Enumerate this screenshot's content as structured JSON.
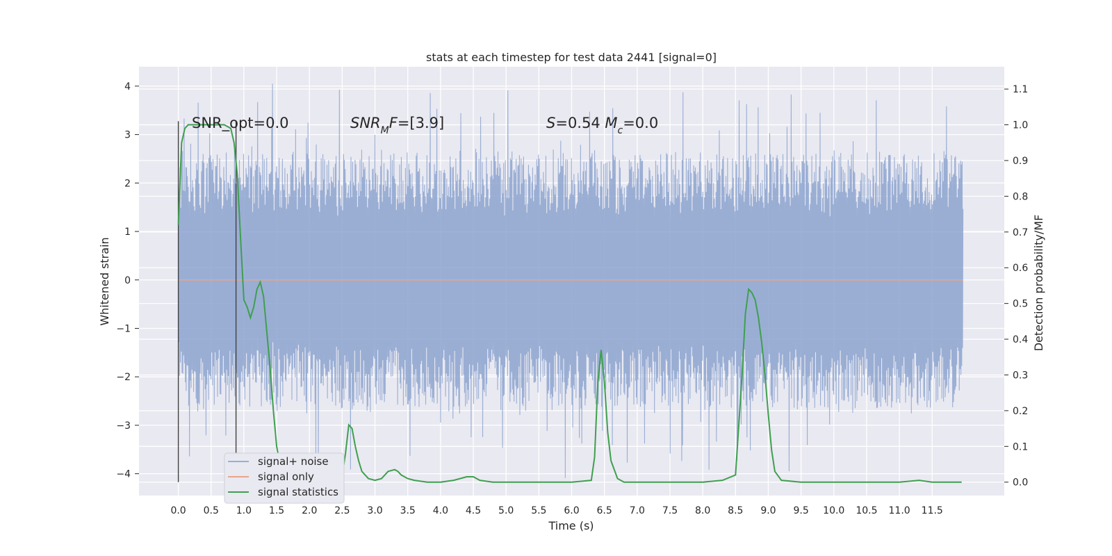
{
  "chart_data": {
    "type": "line",
    "title": "stats at each timestep for test data 2441 [signal=0]",
    "xlabel": "Time (s)",
    "ylabel": "Whitened strain",
    "y2label": "Detection probability/MF",
    "xlim": [
      -0.6,
      12.6
    ],
    "ylim": [
      -4.45,
      4.4
    ],
    "y2lim": [
      -0.0375,
      1.1625
    ],
    "x_ticks": [
      "0.0",
      "0.5",
      "1.0",
      "1.5",
      "2.0",
      "2.5",
      "3.0",
      "3.5",
      "4.0",
      "4.5",
      "5.0",
      "5.5",
      "6.0",
      "6.5",
      "7.0",
      "7.5",
      "8.0",
      "8.5",
      "9.0",
      "9.5",
      "10.0",
      "10.5",
      "11.0",
      "11.5"
    ],
    "y_ticks": [
      "4",
      "3",
      "2",
      "1",
      "0",
      "−1",
      "−2",
      "−3",
      "−4"
    ],
    "y2_ticks": [
      "1.1",
      "1.0",
      "0.9",
      "0.8",
      "0.7",
      "0.6",
      "0.5",
      "0.4",
      "0.3",
      "0.2",
      "0.1",
      "0.0"
    ],
    "grid": true,
    "legend_position": "lower-left",
    "annotations": [
      {
        "label": "SNR_opt=0.0"
      },
      {
        "parts": [
          {
            "t": "SNR",
            "italic": true
          },
          {
            "t": "M",
            "italic": true,
            "sub": true
          },
          {
            "t": "F",
            "italic": true
          },
          {
            "t": "=[3.9]"
          }
        ]
      },
      {
        "parts": [
          {
            "t": "S",
            "italic": true
          },
          {
            "t": "=0.54   "
          },
          {
            "t": "M",
            "italic": true
          },
          {
            "t": "c",
            "italic": true,
            "sub": true
          },
          {
            "t": "=0.0"
          }
        ]
      }
    ],
    "vertical_lines_x": [
      0.0,
      0.88
    ],
    "series": [
      {
        "name": "signal+ noise",
        "color": "#8ca3cf",
        "axis": "left",
        "x_range": [
          0.0,
          11.97
        ],
        "envelope_upper_typical": 2.2,
        "envelope_lower_typical": -2.2,
        "peak_max": 4.05,
        "peak_min": -4.05
      },
      {
        "name": "signal only",
        "color": "#e8a58a",
        "axis": "left",
        "x": [
          0.0,
          11.97
        ],
        "y": [
          0.0,
          0.0
        ]
      },
      {
        "name": "signal statistics",
        "color": "#3f9f4f",
        "axis": "right",
        "x": [
          0.0,
          0.05,
          0.1,
          0.15,
          0.2,
          0.3,
          0.5,
          0.7,
          0.8,
          0.85,
          0.9,
          0.95,
          1.0,
          1.05,
          1.1,
          1.15,
          1.2,
          1.25,
          1.3,
          1.35,
          1.4,
          1.45,
          1.5,
          1.55,
          1.6,
          1.7,
          1.8,
          2.0,
          2.2,
          2.4,
          2.5,
          2.55,
          2.6,
          2.65,
          2.7,
          2.75,
          2.8,
          2.9,
          3.0,
          3.1,
          3.2,
          3.3,
          3.35,
          3.4,
          3.5,
          3.6,
          3.8,
          4.0,
          4.2,
          4.4,
          4.5,
          4.6,
          4.8,
          5.0,
          5.5,
          6.0,
          6.3,
          6.35,
          6.4,
          6.45,
          6.5,
          6.55,
          6.6,
          6.7,
          6.8,
          7.0,
          7.5,
          8.0,
          8.3,
          8.5,
          8.6,
          8.65,
          8.7,
          8.75,
          8.8,
          8.85,
          8.9,
          8.95,
          9.0,
          9.05,
          9.1,
          9.2,
          9.5,
          10.0,
          11.0,
          11.3,
          11.5,
          11.95
        ],
        "y": [
          0.72,
          0.95,
          0.99,
          1.0,
          1.0,
          1.0,
          1.0,
          1.0,
          0.99,
          0.95,
          0.86,
          0.68,
          0.51,
          0.49,
          0.46,
          0.49,
          0.54,
          0.56,
          0.52,
          0.42,
          0.32,
          0.2,
          0.1,
          0.05,
          0.02,
          0.005,
          0.0,
          0.0,
          0.0,
          0.0,
          0.02,
          0.08,
          0.16,
          0.15,
          0.1,
          0.06,
          0.03,
          0.01,
          0.005,
          0.01,
          0.03,
          0.035,
          0.03,
          0.02,
          0.01,
          0.005,
          0.0,
          0.0,
          0.005,
          0.015,
          0.015,
          0.005,
          0.0,
          0.0,
          0.0,
          0.0,
          0.005,
          0.07,
          0.28,
          0.37,
          0.28,
          0.14,
          0.06,
          0.01,
          0.0,
          0.0,
          0.0,
          0.0,
          0.005,
          0.02,
          0.3,
          0.47,
          0.54,
          0.53,
          0.51,
          0.46,
          0.39,
          0.3,
          0.19,
          0.09,
          0.03,
          0.005,
          0.0,
          0.0,
          0.0,
          0.005,
          0.0,
          0.0
        ]
      }
    ]
  }
}
